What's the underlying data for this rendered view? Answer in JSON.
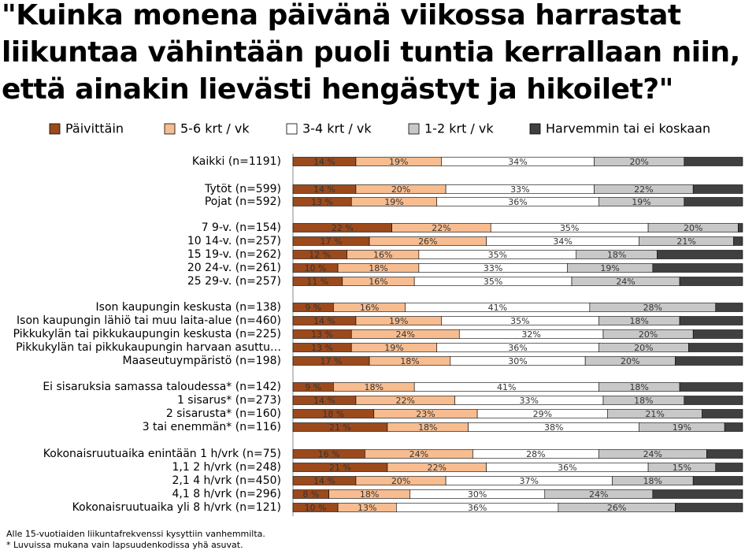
{
  "chart_data": {
    "type": "stacked-bar-horizontal",
    "title": "\"Kuinka monena päivänä viikossa harrastat liikuntaa vähintään puoli tuntia kerrallaan niin, että ainakin lievästi hengästyt ja hikoilet?\"",
    "categories": [
      "Kaikki (n=1191)",
      "Tytöt (n=599)",
      "Pojat (n=592)",
      "7 9-v. (n=154)",
      "10 14-v. (n=257)",
      "15 19-v. (n=262)",
      "20 24-v. (n=261)",
      "25 29-v. (n=257)",
      "Ison kaupungin keskusta (n=138)",
      "Ison kaupungin lähiö tai muu laita-alue (n=460)",
      "Pikkukylän tai pikkukaupungin keskusta (n=225)",
      "Pikkukylän tai pikkukaupungin harvaan asuttu…",
      "Maaseutuympäristö (n=198)",
      "Ei sisaruksia samassa taloudessa* (n=142)",
      "1 sisarus* (n=273)",
      "2 sisarusta* (n=160)",
      "3 tai enemmän* (n=116)",
      "Kokonaisruutuaika enintään 1 h/vrk (n=75)",
      "1,1 2 h/vrk (n=248)",
      "2,1 4 h/vrk (n=450)",
      "4,1 8 h/vrk (n=296)",
      "Kokonaisruutuaika yli 8 h/vrk (n=121)"
    ],
    "xlim": [
      0,
      100
    ],
    "series": [
      {
        "name": "Päivittäin",
        "color": "#9c4a1c",
        "values": [
          14,
          14,
          13,
          22,
          17,
          12,
          10,
          11,
          9,
          14,
          13,
          13,
          17,
          9,
          14,
          18,
          21,
          16,
          21,
          14,
          8,
          10
        ],
        "value_labels": [
          "14 %",
          "14 %",
          "13 %",
          "22 %",
          "17 %",
          "12 %",
          "10 %",
          "11 %",
          "9 %",
          "14 %",
          "13 %",
          "13 %",
          "17 %",
          "9 %",
          "14 %",
          "18 %",
          "21 %",
          "16 %",
          "21 %",
          "14 %",
          "8 %",
          "10 %"
        ]
      },
      {
        "name": "5-6 krt / vk",
        "color": "#f7bc8f",
        "values": [
          19,
          20,
          19,
          22,
          26,
          16,
          18,
          16,
          16,
          19,
          24,
          19,
          18,
          18,
          22,
          23,
          18,
          24,
          22,
          20,
          18,
          13
        ],
        "value_labels": [
          "19%",
          "20%",
          "19%",
          "22%",
          "26%",
          "16%",
          "18%",
          "16%",
          "16%",
          "19%",
          "24%",
          "19%",
          "18%",
          "18%",
          "22%",
          "23%",
          "18%",
          "24%",
          "22%",
          "20%",
          "18%",
          "13%"
        ]
      },
      {
        "name": "3-4 krt / vk",
        "color": "#ffffff",
        "values": [
          34,
          33,
          36,
          35,
          34,
          35,
          33,
          35,
          41,
          35,
          32,
          36,
          30,
          41,
          33,
          29,
          38,
          28,
          36,
          37,
          30,
          36
        ],
        "value_labels": [
          "34%",
          "33%",
          "36%",
          "35%",
          "34%",
          "35%",
          "33%",
          "35%",
          "41%",
          "35%",
          "32%",
          "36%",
          "30%",
          "41%",
          "33%",
          "29%",
          "38%",
          "28%",
          "36%",
          "37%",
          "30%",
          "36%"
        ]
      },
      {
        "name": "1-2 krt / vk",
        "color": "#c8c8c8",
        "values": [
          20,
          22,
          19,
          20,
          21,
          18,
          19,
          24,
          28,
          18,
          20,
          20,
          20,
          18,
          18,
          21,
          19,
          24,
          15,
          18,
          24,
          26
        ],
        "value_labels": [
          "20%",
          "22%",
          "19%",
          "20%",
          "21%",
          "18%",
          "19%",
          "24%",
          "28%",
          "18%",
          "20%",
          "20%",
          "20%",
          "18%",
          "18%",
          "21%",
          "19%",
          "24%",
          "15%",
          "18%",
          "24%",
          "26%"
        ]
      },
      {
        "name": "Harvemmin tai ei koskaan",
        "color": "#404040",
        "values": [
          13,
          11,
          13,
          1,
          2,
          19,
          20,
          14,
          6,
          14,
          11,
          12,
          15,
          14,
          13,
          9,
          4,
          8,
          6,
          11,
          20,
          15
        ]
      }
    ],
    "footnotes": [
      "Alle 15-vuotiaiden liikuntafrekvenssi kysyttiin vanhemmilta.",
      "* Luvuissa mukana vain lapsuudenkodissa yhä asuvat."
    ]
  }
}
